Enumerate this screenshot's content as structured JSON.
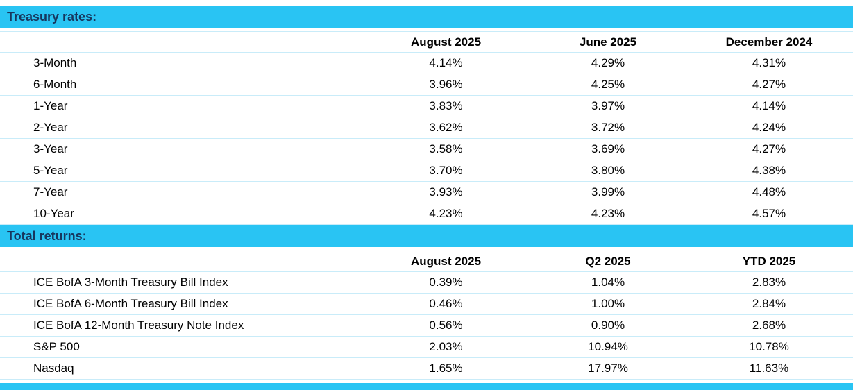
{
  "colors": {
    "accent_cyan": "#29C4F3",
    "section_title_text": "#17375E",
    "row_divider": "#C9ECF9",
    "body_text": "#000000",
    "background": "#FFFFFF"
  },
  "treasury_section": {
    "title": "Treasury rates:",
    "column_headers": [
      "August 2025",
      "June 2025",
      "December 2024"
    ],
    "rows": [
      {
        "label": "3-Month",
        "values": [
          "4.14%",
          "4.29%",
          "4.31%"
        ]
      },
      {
        "label": "6-Month",
        "values": [
          "3.96%",
          "4.25%",
          "4.27%"
        ]
      },
      {
        "label": "1-Year",
        "values": [
          "3.83%",
          "3.97%",
          "4.14%"
        ]
      },
      {
        "label": "2-Year",
        "values": [
          "3.62%",
          "3.72%",
          "4.24%"
        ]
      },
      {
        "label": "3-Year",
        "values": [
          "3.58%",
          "3.69%",
          "4.27%"
        ]
      },
      {
        "label": "5-Year",
        "values": [
          "3.70%",
          "3.80%",
          "4.38%"
        ]
      },
      {
        "label": "7-Year",
        "values": [
          "3.93%",
          "3.99%",
          "4.48%"
        ]
      },
      {
        "label": "10-Year",
        "values": [
          "4.23%",
          "4.23%",
          "4.57%"
        ]
      }
    ]
  },
  "returns_section": {
    "title": "Total returns:",
    "column_headers": [
      "August 2025",
      "Q2 2025",
      "YTD 2025"
    ],
    "rows": [
      {
        "label": "ICE BofA 3-Month Treasury Bill Index",
        "values": [
          "0.39%",
          "1.04%",
          "2.83%"
        ]
      },
      {
        "label": "ICE BofA 6-Month Treasury Bill Index",
        "values": [
          "0.46%",
          "1.00%",
          "2.84%"
        ]
      },
      {
        "label": "ICE BofA 12-Month Treasury Note Index",
        "values": [
          "0.56%",
          "0.90%",
          "2.68%"
        ]
      },
      {
        "label": "S&P 500",
        "values": [
          "2.03%",
          "10.94%",
          "10.78%"
        ]
      },
      {
        "label": "Nasdaq",
        "values": [
          "1.65%",
          "17.97%",
          "11.63%"
        ]
      }
    ]
  },
  "chart_data": [
    {
      "type": "table",
      "title": "Treasury rates:",
      "columns": [
        "",
        "August 2025",
        "June 2025",
        "December 2024"
      ],
      "rows": [
        [
          "3-Month",
          "4.14%",
          "4.29%",
          "4.31%"
        ],
        [
          "6-Month",
          "3.96%",
          "4.25%",
          "4.27%"
        ],
        [
          "1-Year",
          "3.83%",
          "3.97%",
          "4.14%"
        ],
        [
          "2-Year",
          "3.62%",
          "3.72%",
          "4.24%"
        ],
        [
          "3-Year",
          "3.58%",
          "3.69%",
          "4.27%"
        ],
        [
          "5-Year",
          "3.70%",
          "3.80%",
          "4.38%"
        ],
        [
          "7-Year",
          "3.93%",
          "3.99%",
          "4.48%"
        ],
        [
          "10-Year",
          "4.23%",
          "4.23%",
          "4.57%"
        ]
      ]
    },
    {
      "type": "table",
      "title": "Total returns:",
      "columns": [
        "",
        "August 2025",
        "Q2 2025",
        "YTD 2025"
      ],
      "rows": [
        [
          "ICE BofA 3-Month Treasury Bill Index",
          "0.39%",
          "1.04%",
          "2.83%"
        ],
        [
          "ICE BofA 6-Month Treasury Bill Index",
          "0.46%",
          "1.00%",
          "2.84%"
        ],
        [
          "ICE BofA 12-Month Treasury Note Index",
          "0.56%",
          "0.90%",
          "2.68%"
        ],
        [
          "S&P 500",
          "2.03%",
          "10.94%",
          "10.78%"
        ],
        [
          "Nasdaq",
          "1.65%",
          "17.97%",
          "11.63%"
        ]
      ]
    }
  ]
}
